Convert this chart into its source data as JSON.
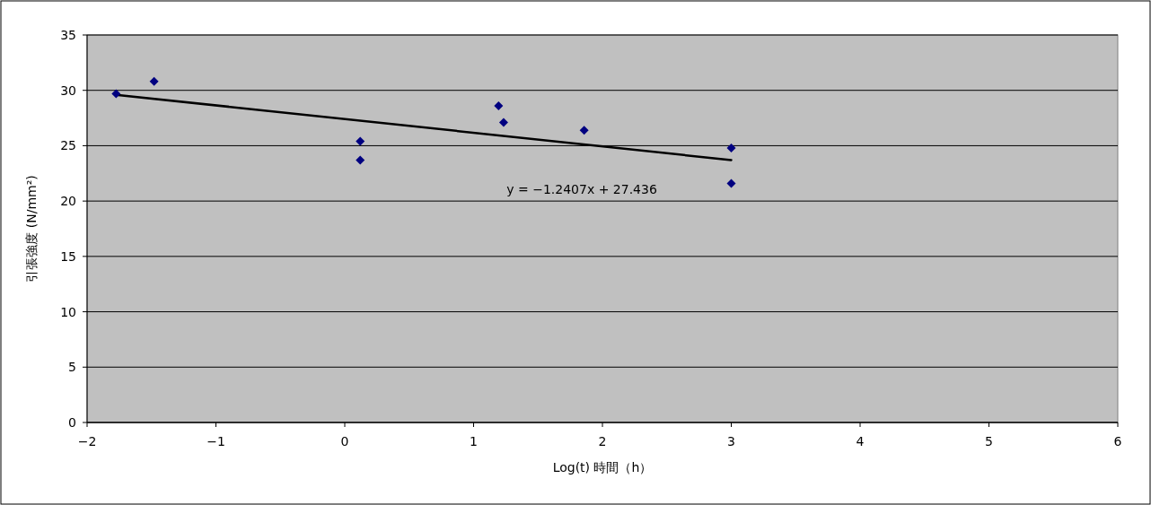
{
  "chart_data": {
    "type": "scatter",
    "xlabel": "Log(t) 時間（h）",
    "ylabel": "引張強度 (N/mm²)",
    "series": [
      {
        "color": "#000080",
        "marker": "diamond",
        "x": [
          -1.775,
          -1.48,
          0.12,
          0.12,
          1.194,
          1.233,
          1.858,
          3.0,
          3.0
        ],
        "values": [
          29.7,
          30.8,
          25.4,
          23.7,
          28.6,
          27.1,
          26.4,
          24.8,
          21.6
        ]
      },
      {
        "type": "line",
        "color": "#000000",
        "marker": "none",
        "line_style": "solid",
        "x": [
          -1.775,
          3.0
        ],
        "values": [
          29.6,
          23.7
        ]
      }
    ],
    "annotations": [
      "y = −1.2407x + 27.436"
    ],
    "xlim": [
      -2,
      6
    ],
    "xticks": [
      {
        "value": -2,
        "label": "−2"
      },
      {
        "value": -1,
        "label": "−1"
      },
      0,
      1,
      2,
      3,
      4,
      5,
      6
    ],
    "ylim": [
      0,
      35
    ],
    "yticks": [
      0,
      5,
      10,
      15,
      20,
      25,
      30,
      35
    ],
    "grid": "y"
  }
}
